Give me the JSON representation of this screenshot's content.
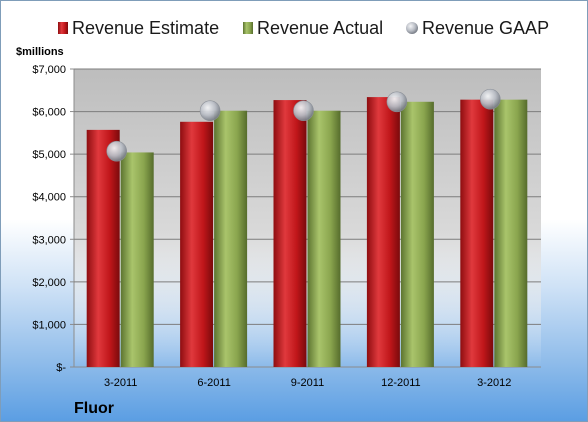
{
  "chart_data": {
    "type": "bar",
    "categories": [
      "3-2011",
      "6-2011",
      "9-2011",
      "12-2011",
      "3-2012"
    ],
    "series": [
      {
        "name": "Revenue Estimate",
        "values": [
          5570,
          5760,
          6270,
          6340,
          6280
        ],
        "color": "#c0161a",
        "kind": "bar"
      },
      {
        "name": "Revenue Actual",
        "values": [
          5040,
          6020,
          6020,
          6230,
          6280
        ],
        "color": "#8aa54e",
        "kind": "bar"
      },
      {
        "name": "Revenue GAAP",
        "values": [
          5070,
          6020,
          6020,
          6230,
          6290
        ],
        "color": "#b8bcc4",
        "kind": "point"
      }
    ],
    "ylabel": "$millions",
    "ylim": [
      0,
      7000
    ],
    "y_ticks": [
      {
        "value": 0,
        "label": "$-"
      },
      {
        "value": 1000,
        "label": "$1,000"
      },
      {
        "value": 2000,
        "label": "$2,000"
      },
      {
        "value": 3000,
        "label": "$3,000"
      },
      {
        "value": 4000,
        "label": "$4,000"
      },
      {
        "value": 5000,
        "label": "$5,000"
      },
      {
        "value": 6000,
        "label": "$6,000"
      },
      {
        "value": 7000,
        "label": "$7,000"
      }
    ],
    "grid": true,
    "legend_position": "top"
  },
  "company": "Fluor"
}
